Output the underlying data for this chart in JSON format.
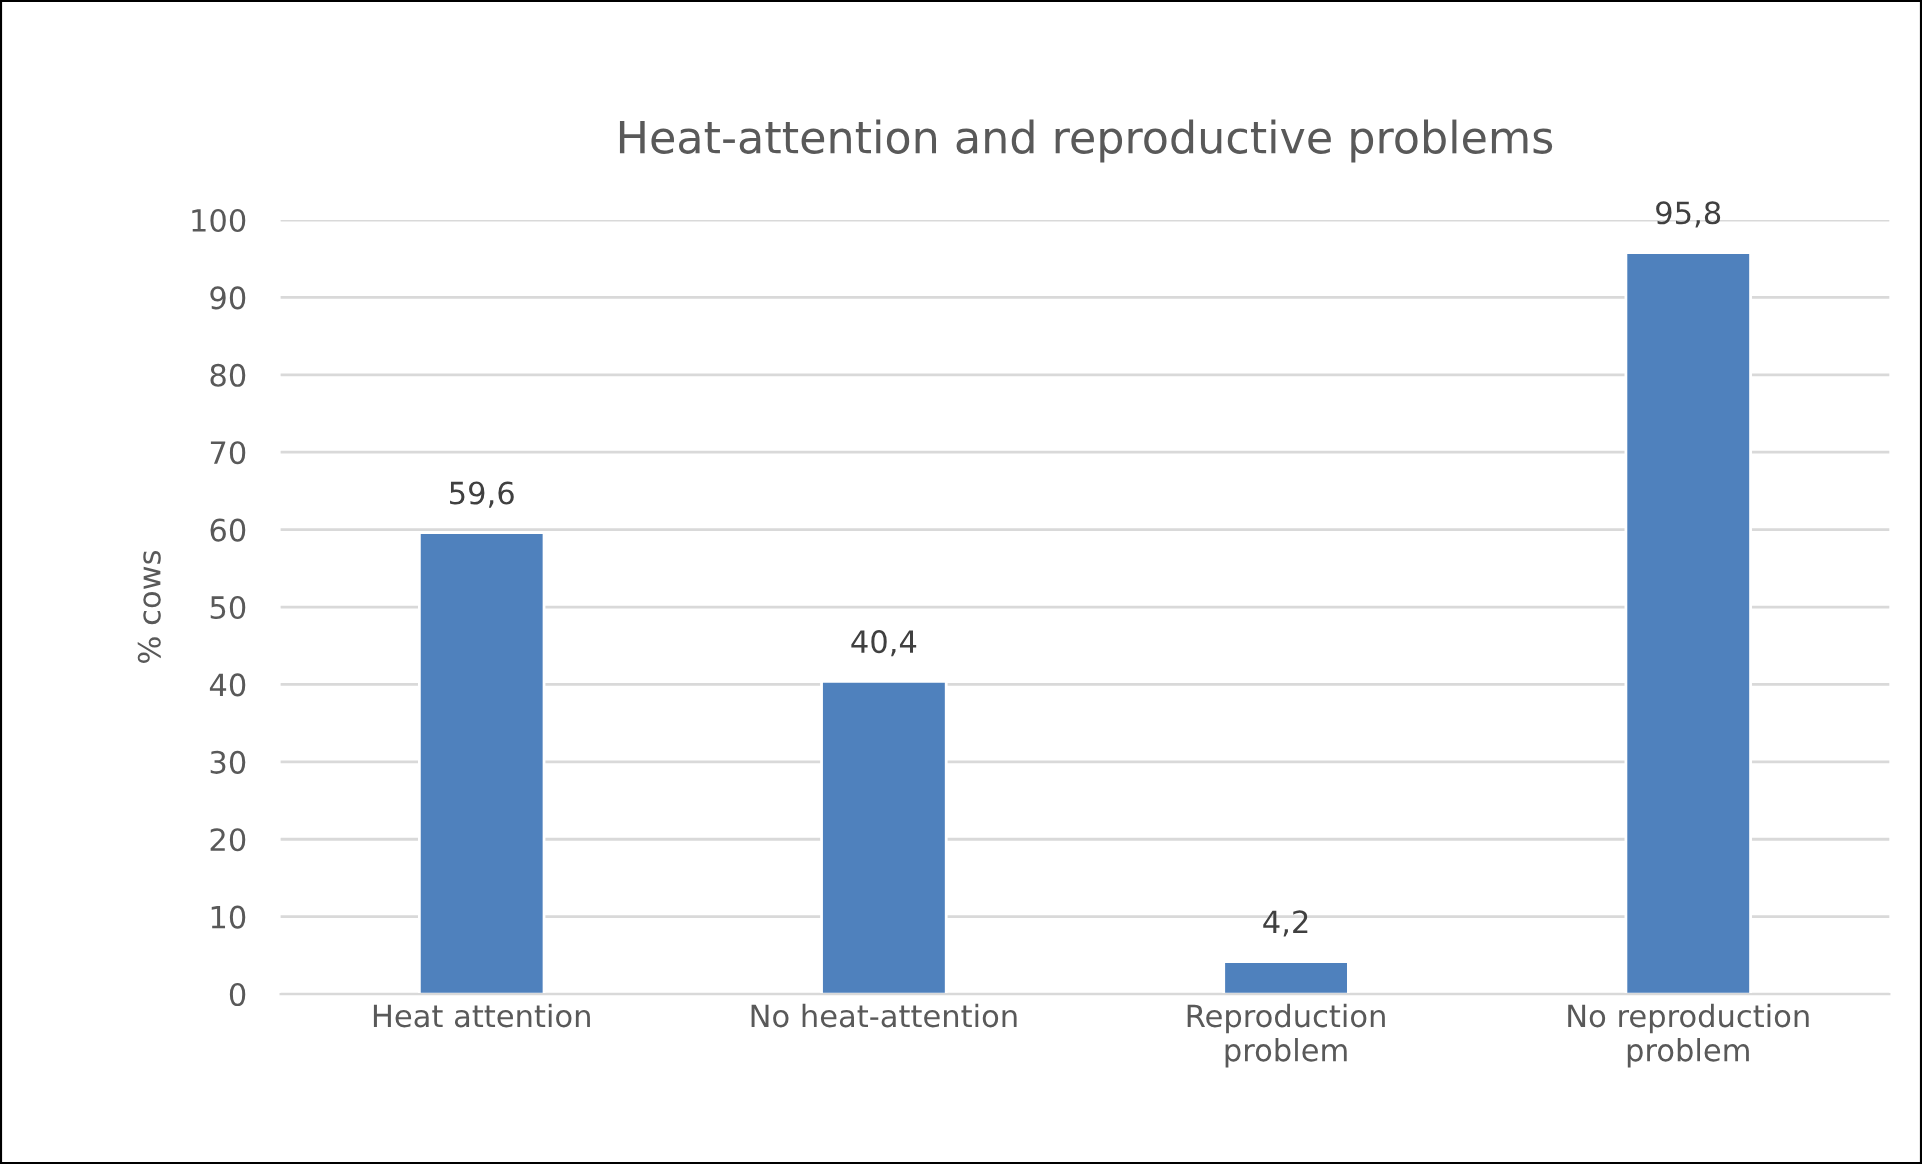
{
  "chart_data": {
    "type": "bar",
    "title": "Heat-attention and reproductive problems",
    "ylabel": "% cows",
    "categories": [
      "Heat attention",
      "No heat-attention",
      "Reproduction\nproblem",
      "No reproduction\nproblem"
    ],
    "values": [
      59.6,
      40.4,
      4.2,
      95.8
    ],
    "value_labels": [
      "59,6",
      "40,4",
      "4,2",
      "95,8"
    ],
    "color": "#4f81bd",
    "ylim": [
      0,
      100
    ],
    "yticks": [
      0,
      10,
      20,
      30,
      40,
      50,
      60,
      70,
      80,
      90,
      100
    ],
    "grid": "y",
    "legend": false
  }
}
